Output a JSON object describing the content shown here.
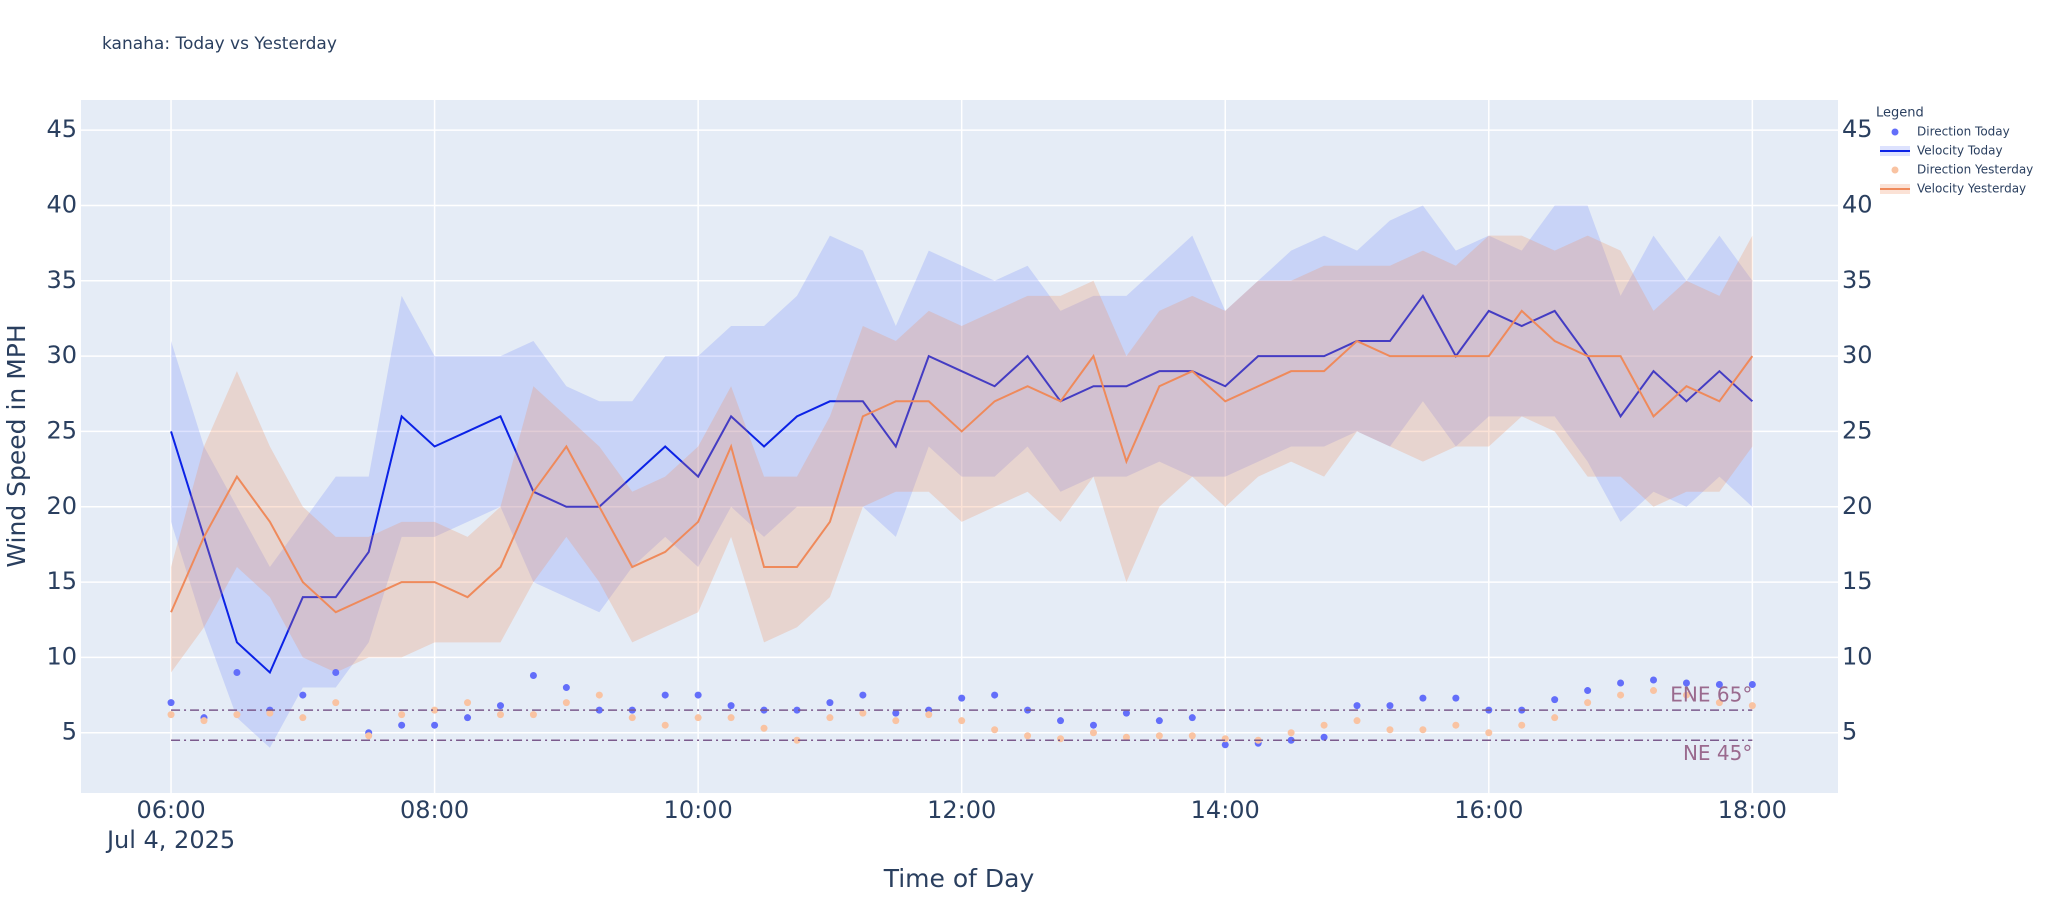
{
  "chart_data": {
    "type": "line",
    "title": "kanaha: Today vs Yesterday",
    "x_label": "Time of Day",
    "y_label": "Wind Speed in MPH",
    "legend_title": "Legend",
    "legend_position": "right",
    "grid": true,
    "x_date_label": "Jul 4, 2025",
    "xlim": [
      "2025-07-04 05:19",
      "2025-07-04 18:39"
    ],
    "xticks": [
      {
        "value": "2025-07-04 06:00",
        "label": "06:00"
      },
      {
        "value": "2025-07-04 08:00",
        "label": "08:00"
      },
      {
        "value": "2025-07-04 10:00",
        "label": "10:00"
      },
      {
        "value": "2025-07-04 12:00",
        "label": "12:00"
      },
      {
        "value": "2025-07-04 14:00",
        "label": "14:00"
      },
      {
        "value": "2025-07-04 16:00",
        "label": "16:00"
      },
      {
        "value": "2025-07-04 18:00",
        "label": "18:00"
      }
    ],
    "ylim": [
      1,
      47
    ],
    "yticks": [
      5,
      10,
      15,
      20,
      25,
      30,
      35,
      40,
      45
    ],
    "x": [
      "2025-07-04 06:00",
      "2025-07-04 06:15",
      "2025-07-04 06:30",
      "2025-07-04 06:45",
      "2025-07-04 07:00",
      "2025-07-04 07:15",
      "2025-07-04 07:30",
      "2025-07-04 07:45",
      "2025-07-04 08:00",
      "2025-07-04 08:15",
      "2025-07-04 08:30",
      "2025-07-04 08:45",
      "2025-07-04 09:00",
      "2025-07-04 09:15",
      "2025-07-04 09:30",
      "2025-07-04 09:45",
      "2025-07-04 10:00",
      "2025-07-04 10:15",
      "2025-07-04 10:30",
      "2025-07-04 10:45",
      "2025-07-04 11:00",
      "2025-07-04 11:15",
      "2025-07-04 11:30",
      "2025-07-04 11:45",
      "2025-07-04 12:00",
      "2025-07-04 12:15",
      "2025-07-04 12:30",
      "2025-07-04 12:45",
      "2025-07-04 13:00",
      "2025-07-04 13:15",
      "2025-07-04 13:30",
      "2025-07-04 13:45",
      "2025-07-04 14:00",
      "2025-07-04 14:15",
      "2025-07-04 14:30",
      "2025-07-04 14:45",
      "2025-07-04 15:00",
      "2025-07-04 15:15",
      "2025-07-04 15:30",
      "2025-07-04 15:45",
      "2025-07-04 16:00",
      "2025-07-04 16:15",
      "2025-07-04 16:30",
      "2025-07-04 16:45",
      "2025-07-04 17:00",
      "2025-07-04 17:15",
      "2025-07-04 17:30",
      "2025-07-04 17:45",
      "2025-07-04 18:00"
    ],
    "series": [
      {
        "name": "Direction Today",
        "mode": "markers",
        "color": "#636efa",
        "values": [
          7,
          6,
          9,
          6.5,
          7.5,
          9,
          5,
          5.5,
          5.5,
          6,
          6.8,
          8.8,
          8,
          6.5,
          6.5,
          7.5,
          7.5,
          6.8,
          6.5,
          6.5,
          7,
          7.5,
          6.3,
          6.5,
          7.3,
          7.5,
          6.5,
          5.8,
          5.5,
          6.3,
          5.8,
          6,
          4.2,
          4.3,
          4.5,
          4.7,
          6.8,
          6.8,
          7.3,
          7.3,
          6.5,
          6.5,
          7.2,
          7.8,
          8.3,
          8.5,
          8.3,
          8.2,
          8.2
        ]
      },
      {
        "name": "Velocity Today",
        "mode": "lines",
        "color": "#0b22e6",
        "band_color": "rgba(99,122,250,0.22)",
        "values": [
          25,
          18,
          11,
          9,
          14,
          14,
          17,
          26,
          24,
          25,
          26,
          21,
          20,
          20,
          22,
          24,
          22,
          26,
          24,
          26,
          27,
          27,
          24,
          30,
          29,
          28,
          30,
          27,
          28,
          28,
          29,
          29,
          28,
          30,
          30,
          30,
          31,
          31,
          34,
          30,
          33,
          32,
          33,
          30,
          26,
          29,
          27,
          29,
          27
        ],
        "upper": [
          31,
          24,
          20,
          16,
          19,
          22,
          22,
          34,
          30,
          30,
          30,
          31,
          28,
          27,
          27,
          30,
          30,
          32,
          32,
          34,
          38,
          37,
          32,
          37,
          36,
          35,
          36,
          33,
          34,
          34,
          36,
          38,
          33,
          35,
          37,
          38,
          37,
          39,
          40,
          37,
          38,
          37,
          40,
          40,
          34,
          38,
          35,
          38,
          35
        ],
        "lower": [
          19,
          12,
          6,
          4,
          8,
          8,
          11,
          18,
          18,
          19,
          20,
          15,
          14,
          13,
          16,
          18,
          16,
          20,
          18,
          20,
          20,
          20,
          18,
          24,
          22,
          22,
          24,
          21,
          22,
          22,
          23,
          22,
          22,
          23,
          24,
          24,
          25,
          24,
          27,
          24,
          26,
          26,
          26,
          23,
          19,
          21,
          20,
          22,
          20
        ]
      },
      {
        "name": "Direction Yesterday",
        "mode": "markers",
        "color": "#f9c3a2",
        "values": [
          6.2,
          5.8,
          6.2,
          6.3,
          6,
          7,
          4.8,
          6.2,
          6.5,
          7,
          6.2,
          6.2,
          7,
          7.5,
          6,
          5.5,
          6,
          6,
          5.3,
          4.5,
          6,
          6.3,
          5.8,
          6.2,
          5.8,
          5.2,
          4.8,
          4.6,
          5,
          4.7,
          4.8,
          4.8,
          4.6,
          4.5,
          5,
          5.5,
          5.8,
          5.2,
          5.2,
          5.5,
          5,
          5.5,
          6,
          7,
          7.5,
          7.8,
          7.5,
          7,
          6.8
        ]
      },
      {
        "name": "Velocity Yesterday",
        "mode": "lines",
        "color": "#ef8a5b",
        "band_color": "rgba(239,138,91,0.25)",
        "values": [
          13,
          18,
          22,
          19,
          15,
          13,
          14,
          15,
          15,
          14,
          16,
          21,
          24,
          20,
          16,
          17,
          19,
          24,
          16,
          16,
          19,
          26,
          27,
          27,
          25,
          27,
          28,
          27,
          30,
          23,
          28,
          29,
          27,
          28,
          29,
          29,
          31,
          30,
          30,
          30,
          30,
          33,
          31,
          30,
          30,
          26,
          28,
          27,
          30
        ],
        "upper": [
          16,
          24,
          29,
          24,
          20,
          18,
          18,
          19,
          19,
          18,
          20,
          28,
          26,
          24,
          21,
          22,
          24,
          28,
          22,
          22,
          26,
          32,
          31,
          33,
          32,
          33,
          34,
          34,
          35,
          30,
          33,
          34,
          33,
          35,
          35,
          36,
          36,
          36,
          37,
          36,
          38,
          38,
          37,
          38,
          37,
          33,
          35,
          34,
          38
        ],
        "lower": [
          9,
          12,
          16,
          14,
          10,
          9,
          10,
          10,
          11,
          11,
          11,
          15,
          18,
          15,
          11,
          12,
          13,
          18,
          11,
          12,
          14,
          20,
          21,
          21,
          19,
          20,
          21,
          19,
          22,
          15,
          20,
          22,
          20,
          22,
          23,
          22,
          25,
          24,
          23,
          24,
          24,
          26,
          25,
          22,
          22,
          20,
          21,
          21,
          24
        ]
      }
    ],
    "reference_lines": [
      {
        "label": "ENE 65°",
        "y": 6.5,
        "x": [
          "2025-07-04 06:00",
          "2025-07-04 18:00"
        ],
        "color": "#7b5a8c"
      },
      {
        "label": "NE 45°",
        "y": 4.5,
        "x": [
          "2025-07-04 06:00",
          "2025-07-04 18:00"
        ],
        "color": "#7b5a8c"
      }
    ]
  }
}
